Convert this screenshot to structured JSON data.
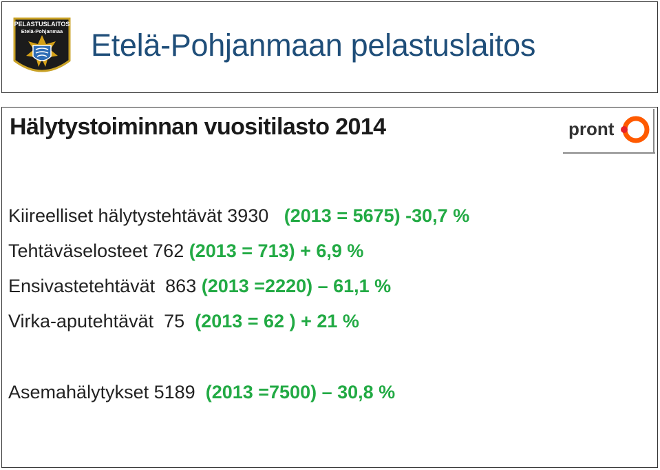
{
  "header": {
    "title": "Etelä-Pohjanmaan pelastuslaitos",
    "logo_line1": "PELASTUSLAITOS",
    "logo_line2": "Etelä-Pohjanmaa"
  },
  "content": {
    "title": "Hälytystoiminnan vuositilasto 2014",
    "pronto_logo_text": "pront",
    "stats": [
      {
        "label": "Kiireelliset hälytystehtävät",
        "value": "3930",
        "comparison": "(2013 = 5675) -30,7 %"
      },
      {
        "label": "Tehtäväselosteet",
        "value": "762",
        "comparison": "(2013 = 713) + 6,9 %"
      },
      {
        "label": "Ensivastetehtävät",
        "value": "863",
        "comparison": "(2013 =2220) – 61,1 %"
      },
      {
        "label": "Virka-aputehtävät",
        "value": "75",
        "comparison": "(2013 = 62 ) + 21 %"
      },
      {
        "label": "Asemahälytykset",
        "value": "5189",
        "comparison": "(2013 =7500) – 30,8 %"
      }
    ]
  },
  "colors": {
    "header_title": "#1f4e79",
    "comparison": "#22aa44",
    "pronto_orange": "#ff5a00",
    "pronto_text": "#333333"
  }
}
